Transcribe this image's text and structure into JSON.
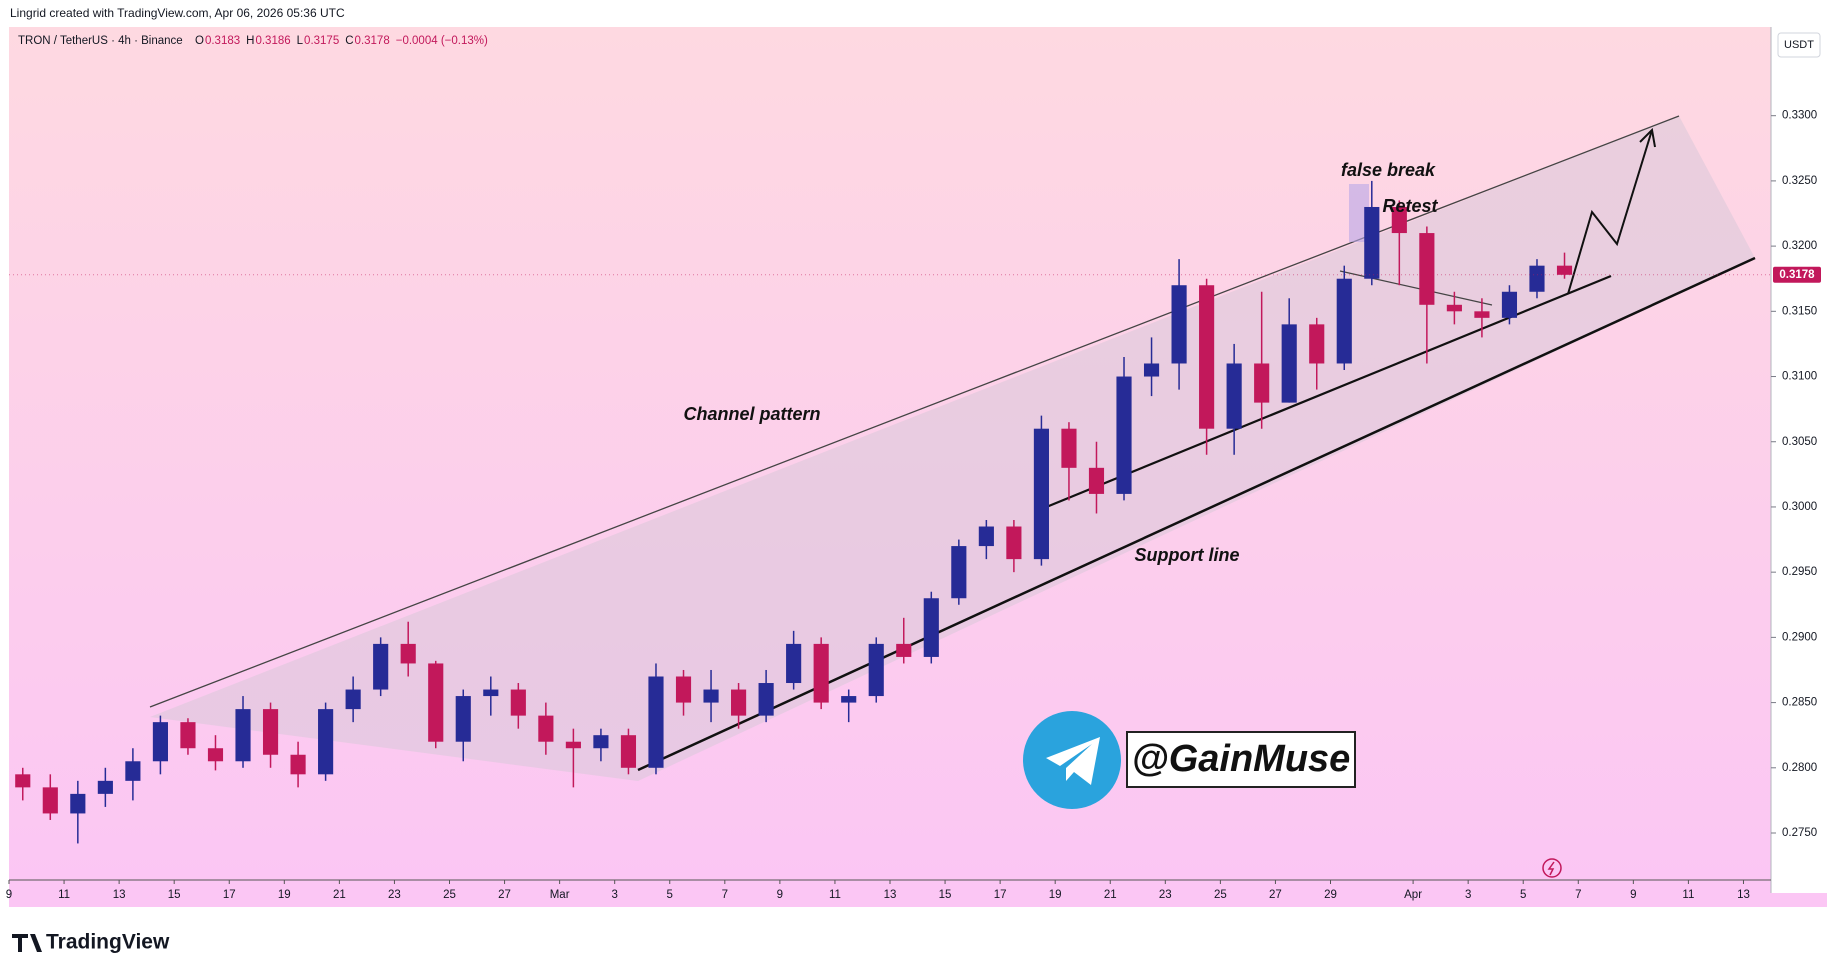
{
  "header": {
    "credit": "Lingrid created with TradingView.com, Apr 06, 2026 05:36 UTC",
    "symbol": "TRON / TetherUS · 4h · Binance",
    "ohlc": [
      {
        "label": "O",
        "value": "0.3183"
      },
      {
        "label": "H",
        "value": "0.3186"
      },
      {
        "label": "L",
        "value": "0.3175"
      },
      {
        "label": "C",
        "value": "0.3178"
      }
    ],
    "change": "−0.0004 (−0.13%)"
  },
  "chart_data": {
    "type": "candlestick",
    "currency": "USDT",
    "last_price": {
      "value": 0.3178,
      "label": "0.3178"
    },
    "up_color": "#262b96",
    "down_color": "#c2185b",
    "x": [
      "2026-02-09",
      "2026-02-10",
      "2026-02-11",
      "2026-02-12",
      "2026-02-13",
      "2026-02-14",
      "2026-02-15",
      "2026-02-16",
      "2026-02-17",
      "2026-02-18",
      "2026-02-19",
      "2026-02-20",
      "2026-02-21",
      "2026-02-22",
      "2026-02-23",
      "2026-02-24",
      "2026-02-25",
      "2026-02-26",
      "2026-02-27",
      "2026-02-28",
      "2026-03-01",
      "2026-03-02",
      "2026-03-03",
      "2026-03-04",
      "2026-03-05",
      "2026-03-06",
      "2026-03-07",
      "2026-03-08",
      "2026-03-09",
      "2026-03-10",
      "2026-03-11",
      "2026-03-12",
      "2026-03-13",
      "2026-03-14",
      "2026-03-15",
      "2026-03-16",
      "2026-03-17",
      "2026-03-18",
      "2026-03-19",
      "2026-03-20",
      "2026-03-21",
      "2026-03-22",
      "2026-03-23",
      "2026-03-24",
      "2026-03-25",
      "2026-03-26",
      "2026-03-27",
      "2026-03-28",
      "2026-03-29",
      "2026-03-30",
      "2026-03-31",
      "2026-04-01",
      "2026-04-02",
      "2026-04-03",
      "2026-04-04",
      "2026-04-05",
      "2026-04-06"
    ],
    "open": [
      0.2795,
      0.2785,
      0.2765,
      0.278,
      0.279,
      0.2805,
      0.2835,
      0.2815,
      0.2805,
      0.2845,
      0.281,
      0.2795,
      0.2845,
      0.286,
      0.2895,
      0.288,
      0.282,
      0.2855,
      0.286,
      0.284,
      0.282,
      0.2815,
      0.2825,
      0.28,
      0.287,
      0.285,
      0.286,
      0.284,
      0.2865,
      0.2895,
      0.285,
      0.2855,
      0.2895,
      0.2885,
      0.293,
      0.297,
      0.2985,
      0.296,
      0.306,
      0.303,
      0.301,
      0.31,
      0.311,
      0.317,
      0.306,
      0.311,
      0.308,
      0.314,
      0.311,
      0.3175,
      0.323,
      0.321,
      0.3155,
      0.315,
      0.3145,
      0.3165,
      0.3185
    ],
    "high": [
      0.28,
      0.2795,
      0.279,
      0.28,
      0.2815,
      0.284,
      0.2838,
      0.2825,
      0.2855,
      0.285,
      0.282,
      0.285,
      0.287,
      0.29,
      0.2912,
      0.2882,
      0.286,
      0.287,
      0.2865,
      0.285,
      0.283,
      0.283,
      0.283,
      0.288,
      0.2875,
      0.2875,
      0.2865,
      0.2875,
      0.2905,
      0.29,
      0.286,
      0.29,
      0.2915,
      0.2935,
      0.2975,
      0.299,
      0.299,
      0.307,
      0.3065,
      0.305,
      0.3115,
      0.313,
      0.319,
      0.3175,
      0.3125,
      0.3165,
      0.316,
      0.3145,
      0.3185,
      0.325,
      0.3235,
      0.3215,
      0.3165,
      0.316,
      0.317,
      0.319,
      0.3195
    ],
    "low": [
      0.2775,
      0.276,
      0.2742,
      0.277,
      0.2775,
      0.2795,
      0.281,
      0.2798,
      0.28,
      0.28,
      0.2785,
      0.279,
      0.2835,
      0.2855,
      0.287,
      0.2815,
      0.2805,
      0.284,
      0.283,
      0.281,
      0.2785,
      0.2805,
      0.2795,
      0.2795,
      0.284,
      0.2835,
      0.283,
      0.2835,
      0.286,
      0.2845,
      0.2835,
      0.285,
      0.288,
      0.288,
      0.2925,
      0.296,
      0.295,
      0.2955,
      0.3005,
      0.2995,
      0.3005,
      0.3085,
      0.309,
      0.304,
      0.304,
      0.306,
      0.308,
      0.309,
      0.3105,
      0.317,
      0.317,
      0.311,
      0.314,
      0.313,
      0.314,
      0.316,
      0.3175
    ],
    "close": [
      0.2785,
      0.2765,
      0.278,
      0.279,
      0.2805,
      0.2835,
      0.2815,
      0.2805,
      0.2845,
      0.281,
      0.2795,
      0.2845,
      0.286,
      0.2895,
      0.288,
      0.282,
      0.2855,
      0.286,
      0.284,
      0.282,
      0.2815,
      0.2825,
      0.28,
      0.287,
      0.285,
      0.286,
      0.284,
      0.2865,
      0.2895,
      0.285,
      0.2855,
      0.2895,
      0.2885,
      0.293,
      0.297,
      0.2985,
      0.296,
      0.306,
      0.303,
      0.301,
      0.31,
      0.311,
      0.317,
      0.306,
      0.311,
      0.308,
      0.314,
      0.311,
      0.3175,
      0.323,
      0.321,
      0.3155,
      0.315,
      0.3145,
      0.3165,
      0.3185,
      0.3178
    ],
    "xlim": [
      "2026-02-09",
      "2026-04-14"
    ],
    "xticks": [
      {
        "value": "2026-02-09",
        "label": "9"
      },
      {
        "value": "2026-02-11",
        "label": "11"
      },
      {
        "value": "2026-02-13",
        "label": "13"
      },
      {
        "value": "2026-02-15",
        "label": "15"
      },
      {
        "value": "2026-02-17",
        "label": "17"
      },
      {
        "value": "2026-02-19",
        "label": "19"
      },
      {
        "value": "2026-02-21",
        "label": "21"
      },
      {
        "value": "2026-02-23",
        "label": "23"
      },
      {
        "value": "2026-02-25",
        "label": "25"
      },
      {
        "value": "2026-02-27",
        "label": "27"
      },
      {
        "value": "2026-03-01",
        "label": "Mar"
      },
      {
        "value": "2026-03-03",
        "label": "3"
      },
      {
        "value": "2026-03-05",
        "label": "5"
      },
      {
        "value": "2026-03-07",
        "label": "7"
      },
      {
        "value": "2026-03-09",
        "label": "9"
      },
      {
        "value": "2026-03-11",
        "label": "11"
      },
      {
        "value": "2026-03-13",
        "label": "13"
      },
      {
        "value": "2026-03-15",
        "label": "15"
      },
      {
        "value": "2026-03-17",
        "label": "17"
      },
      {
        "value": "2026-03-19",
        "label": "19"
      },
      {
        "value": "2026-03-21",
        "label": "21"
      },
      {
        "value": "2026-03-23",
        "label": "23"
      },
      {
        "value": "2026-03-25",
        "label": "25"
      },
      {
        "value": "2026-03-27",
        "label": "27"
      },
      {
        "value": "2026-03-29",
        "label": "29"
      },
      {
        "value": "2026-04-01",
        "label": "Apr"
      },
      {
        "value": "2026-04-03",
        "label": "3"
      },
      {
        "value": "2026-04-05",
        "label": "5"
      },
      {
        "value": "2026-04-07",
        "label": "7"
      },
      {
        "value": "2026-04-09",
        "label": "9"
      },
      {
        "value": "2026-04-11",
        "label": "11"
      },
      {
        "value": "2026-04-13",
        "label": "13"
      }
    ],
    "ylim": [
      0.2704,
      0.3368
    ],
    "yticks": [
      {
        "value": 0.275,
        "label": "0.2750"
      },
      {
        "value": 0.28,
        "label": "0.2800"
      },
      {
        "value": 0.285,
        "label": "0.2850"
      },
      {
        "value": 0.29,
        "label": "0.2900"
      },
      {
        "value": 0.295,
        "label": "0.2950"
      },
      {
        "value": 0.3,
        "label": "0.3000"
      },
      {
        "value": 0.305,
        "label": "0.3050"
      },
      {
        "value": 0.31,
        "label": "0.3100"
      },
      {
        "value": 0.315,
        "label": "0.3150"
      },
      {
        "value": 0.32,
        "label": "0.3200"
      },
      {
        "value": 0.325,
        "label": "0.3250"
      },
      {
        "value": 0.33,
        "label": "0.3300"
      }
    ],
    "annotations": {
      "channel": "Channel pattern",
      "false_break": "false break",
      "retest": "Retest",
      "support": "Support line",
      "handle": "@GainMuse"
    }
  },
  "footer": {
    "brand": "TradingView"
  }
}
